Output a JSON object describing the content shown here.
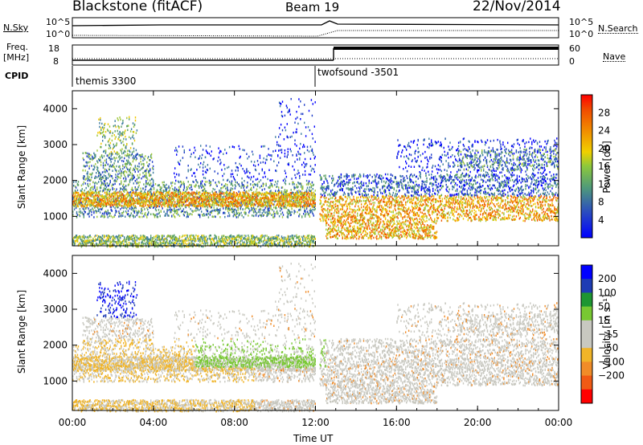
{
  "header": {
    "title": "Blackstone (fitACF)",
    "beam": "Beam 19",
    "date": "22/Nov/2014"
  },
  "strip_panels": {
    "nsky_label": "N.Sky",
    "nsearch_label": "N.Search",
    "nsky_ticks": [
      "10^5",
      "10^0"
    ],
    "nsearch_ticks": [
      "10^5",
      "10^0"
    ],
    "freq_label_1": "Freq.",
    "freq_label_2": "[MHz]",
    "freq_ticks": [
      "18",
      "8"
    ],
    "nave_label": "Nave",
    "nave_ticks": [
      "60",
      "0"
    ],
    "cpid_label": "CPID",
    "cpid_segments": [
      {
        "name": "themis 3300",
        "start_hour": 0
      },
      {
        "name": "twofsound -3501",
        "start_hour": 12.3
      }
    ]
  },
  "chart_data": [
    {
      "type": "heatmap",
      "name": "Power",
      "ylabel": "Slant Range [km]",
      "yticks": [
        1000,
        2000,
        3000,
        4000
      ],
      "ylim": [
        180,
        4500
      ],
      "xlim_hours": [
        0,
        24
      ],
      "colorbar_label": "Power [dB]",
      "colorbar_ticks": [
        4,
        8,
        12,
        16,
        20,
        24,
        28
      ],
      "colorbar_colors": [
        "#0000ff",
        "#1e3cc8",
        "#3c7ca0",
        "#5aa064",
        "#a0c83c",
        "#f0c800",
        "#f08c00",
        "#f05a00",
        "#ff0000"
      ]
    },
    {
      "type": "heatmap",
      "name": "Velocity",
      "ylabel": "Slant Range [km]",
      "yticks": [
        1000,
        2000,
        3000,
        4000
      ],
      "ylim": [
        180,
        4500
      ],
      "xlim_hours": [
        0,
        24
      ],
      "xticks": [
        "00:00",
        "04:00",
        "08:00",
        "12:00",
        "16:00",
        "20:00",
        "00:00"
      ],
      "xlabel": "Time UT",
      "colorbar_label": "Velocity [m s⁻¹]",
      "colorbar_ticks": [
        200,
        100,
        50,
        15,
        -15,
        -50,
        -100,
        -200
      ],
      "colorbar_colors": [
        "#0000ff",
        "#1e3cb4",
        "#1e9632",
        "#78c832",
        "#c8c8c0",
        "#c8c8c0",
        "#f0b428",
        "#f08c28",
        "#f05a14",
        "#ff0000"
      ]
    }
  ]
}
